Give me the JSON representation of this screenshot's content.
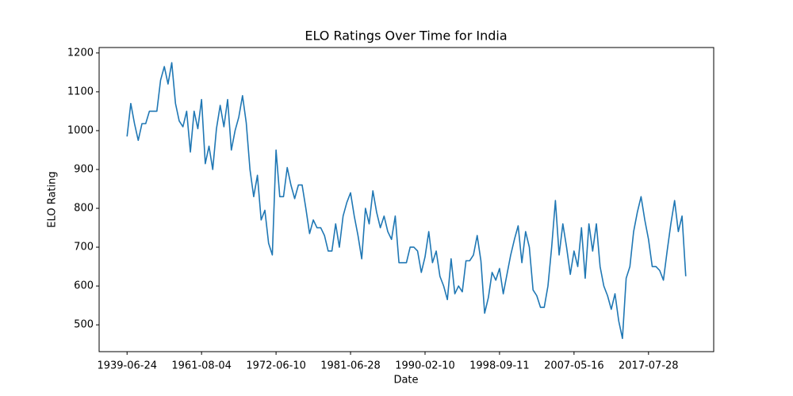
{
  "chart_data": {
    "type": "line",
    "title": "ELO Ratings Over Time for India",
    "x_label": "Date",
    "y_label": "ELO Rating",
    "categories": [
      "1939-06-24",
      null,
      null,
      null,
      null,
      null,
      null,
      null,
      null,
      null,
      null,
      null,
      null,
      null,
      null,
      null,
      null,
      null,
      null,
      null,
      "1961-08-04",
      null,
      null,
      null,
      null,
      null,
      null,
      null,
      null,
      null,
      null,
      null,
      null,
      null,
      null,
      null,
      null,
      null,
      null,
      null,
      "1972-06-10",
      null,
      null,
      null,
      null,
      null,
      null,
      null,
      null,
      null,
      null,
      null,
      null,
      null,
      null,
      null,
      null,
      null,
      null,
      null,
      "1981-06-28",
      null,
      null,
      null,
      null,
      null,
      null,
      null,
      null,
      null,
      null,
      null,
      null,
      null,
      null,
      null,
      null,
      null,
      null,
      null,
      "1990-02-10",
      null,
      null,
      null,
      null,
      null,
      null,
      null,
      null,
      null,
      null,
      null,
      null,
      null,
      null,
      null,
      null,
      null,
      null,
      null,
      "1998-09-11",
      null,
      null,
      null,
      null,
      null,
      null,
      null,
      null,
      null,
      null,
      null,
      null,
      null,
      null,
      null,
      null,
      null,
      null,
      null,
      "2007-05-16",
      null,
      null,
      null,
      null,
      null,
      null,
      null,
      null,
      null,
      null,
      null,
      null,
      null,
      null,
      null,
      null,
      null,
      null,
      null,
      "2017-07-28",
      null,
      null,
      null,
      null,
      null,
      null,
      null,
      null,
      null,
      null
    ],
    "series": [
      {
        "name": "India",
        "color": "#1f77b4",
        "values": [
          985,
          1070,
          1018,
          975,
          1018,
          1018,
          1050,
          1050,
          1050,
          1130,
          1165,
          1120,
          1175,
          1070,
          1025,
          1010,
          1050,
          945,
          1050,
          1005,
          1080,
          915,
          960,
          900,
          1005,
          1065,
          1010,
          1080,
          950,
          1000,
          1035,
          1090,
          1020,
          900,
          830,
          885,
          770,
          795,
          710,
          680,
          950,
          830,
          830,
          905,
          860,
          825,
          860,
          860,
          800,
          735,
          770,
          750,
          750,
          730,
          690,
          690,
          760,
          700,
          780,
          815,
          840,
          780,
          730,
          670,
          800,
          760,
          845,
          790,
          750,
          780,
          740,
          720,
          780,
          660,
          660,
          660,
          700,
          700,
          690,
          635,
          675,
          740,
          660,
          690,
          625,
          600,
          565,
          670,
          580,
          600,
          585,
          665,
          665,
          680,
          730,
          665,
          530,
          570,
          635,
          615,
          645,
          580,
          630,
          680,
          720,
          755,
          660,
          740,
          700,
          590,
          575,
          545,
          545,
          600,
          700,
          820,
          680,
          760,
          700,
          630,
          690,
          650,
          750,
          620,
          760,
          690,
          760,
          650,
          600,
          575,
          540,
          580,
          510,
          465,
          620,
          650,
          740,
          790,
          830,
          770,
          720,
          650,
          650,
          640,
          615,
          690,
          760,
          820,
          740,
          780,
          625
        ]
      }
    ],
    "ylim": [
      431,
      1214
    ],
    "yticks": [
      500,
      600,
      700,
      800,
      900,
      1000,
      1100,
      1200
    ]
  }
}
